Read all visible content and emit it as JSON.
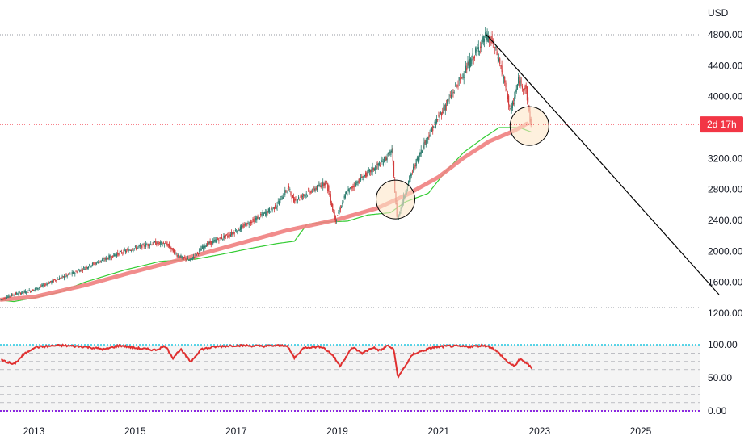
{
  "colors": {
    "background": "#ffffff",
    "candle_up": "#2e7d6f",
    "candle_down": "#d23a3a",
    "ma_thick": "#f08080",
    "ma_thin": "#33cc33",
    "trendline": "#000000",
    "circle_fill": "#fde6c8",
    "circle_stroke": "#000000",
    "badge": "#f23645",
    "rsi_line": "#e03030",
    "rsi_band": "#e6e6e6",
    "rsi_top_line": "#22c7e0",
    "rsi_zero_line": "#8b28e0",
    "grid_line": "#c8c8c8"
  },
  "chart_data": [
    {
      "type": "candlestick",
      "currency_label": "USD",
      "price_axis_ticks": [
        "4800.00",
        "4400.00",
        "4000.00",
        "3200.00",
        "2800.00",
        "2400.00",
        "2000.00",
        "1600.00",
        "1200.00"
      ],
      "price_axis_values": [
        4800,
        4400,
        4000,
        3200,
        2800,
        2400,
        2000,
        1600,
        1200
      ],
      "countdown_badge": "2d 17h",
      "current_price": 3640,
      "x_ticks": [
        "2013",
        "2015",
        "2017",
        "2019",
        "2021",
        "2023",
        "2025"
      ],
      "x_tick_years": [
        2013,
        2015,
        2017,
        2019,
        2021,
        2023,
        2025
      ],
      "x_range_years": [
        2012.35,
        2026.6
      ],
      "price_anchors": [
        [
          2012.35,
          1370
        ],
        [
          2012.6,
          1440
        ],
        [
          2013.0,
          1500
        ],
        [
          2013.4,
          1620
        ],
        [
          2013.8,
          1720
        ],
        [
          2014.2,
          1840
        ],
        [
          2014.6,
          1950
        ],
        [
          2015.0,
          2040
        ],
        [
          2015.4,
          2110
        ],
        [
          2015.65,
          2090
        ],
        [
          2015.85,
          1950
        ],
        [
          2016.1,
          1880
        ],
        [
          2016.4,
          2080
        ],
        [
          2016.9,
          2220
        ],
        [
          2017.3,
          2380
        ],
        [
          2017.8,
          2580
        ],
        [
          2018.05,
          2830
        ],
        [
          2018.15,
          2650
        ],
        [
          2018.6,
          2820
        ],
        [
          2018.8,
          2900
        ],
        [
          2018.98,
          2400
        ],
        [
          2019.2,
          2760
        ],
        [
          2019.5,
          2950
        ],
        [
          2019.9,
          3150
        ],
        [
          2020.1,
          3300
        ],
        [
          2020.2,
          2400
        ],
        [
          2020.45,
          2950
        ],
        [
          2020.7,
          3350
        ],
        [
          2020.95,
          3650
        ],
        [
          2021.3,
          4050
        ],
        [
          2021.6,
          4400
        ],
        [
          2021.95,
          4780
        ],
        [
          2022.1,
          4700
        ],
        [
          2022.25,
          4400
        ],
        [
          2022.45,
          3800
        ],
        [
          2022.6,
          4200
        ],
        [
          2022.75,
          4100
        ],
        [
          2022.85,
          3620
        ]
      ],
      "ma_thick_anchors": [
        [
          2012.35,
          1375
        ],
        [
          2013.0,
          1410
        ],
        [
          2014.0,
          1560
        ],
        [
          2015.0,
          1740
        ],
        [
          2016.0,
          1910
        ],
        [
          2017.0,
          2090
        ],
        [
          2018.0,
          2270
        ],
        [
          2019.0,
          2410
        ],
        [
          2019.8,
          2560
        ],
        [
          2020.4,
          2740
        ],
        [
          2021.0,
          2960
        ],
        [
          2021.5,
          3210
        ],
        [
          2022.0,
          3420
        ],
        [
          2022.5,
          3560
        ],
        [
          2022.75,
          3650
        ]
      ],
      "ma_thin_anchors": [
        [
          2012.35,
          1370
        ],
        [
          2012.6,
          1350
        ],
        [
          2013.0,
          1400
        ],
        [
          2013.5,
          1470
        ],
        [
          2014.0,
          1600
        ],
        [
          2014.8,
          1760
        ],
        [
          2015.5,
          1870
        ],
        [
          2016.2,
          1900
        ],
        [
          2016.7,
          1960
        ],
        [
          2017.3,
          2040
        ],
        [
          2017.8,
          2100
        ],
        [
          2018.15,
          2130
        ],
        [
          2018.4,
          2350
        ],
        [
          2018.8,
          2380
        ],
        [
          2019.2,
          2390
        ],
        [
          2019.6,
          2470
        ],
        [
          2020.05,
          2500
        ],
        [
          2020.35,
          2640
        ],
        [
          2020.8,
          2750
        ],
        [
          2021.1,
          3000
        ],
        [
          2021.5,
          3280
        ],
        [
          2021.9,
          3470
        ],
        [
          2022.2,
          3600
        ],
        [
          2022.6,
          3600
        ],
        [
          2022.85,
          3540
        ]
      ],
      "trendline": [
        [
          2021.95,
          4800
        ],
        [
          2026.55,
          1440
        ]
      ],
      "highlight_circles": [
        {
          "year": 2020.15,
          "price": 2670
        },
        {
          "year": 2022.8,
          "price": 3620
        }
      ]
    },
    {
      "type": "line",
      "indicator": "oscillator",
      "y_ticks": [
        "100.00",
        "50.00",
        "0.00"
      ],
      "y_tick_values": [
        100,
        50,
        0
      ],
      "band_range": [
        0,
        100
      ],
      "anchors": [
        [
          2012.35,
          77
        ],
        [
          2012.6,
          70
        ],
        [
          2012.8,
          85
        ],
        [
          2013.0,
          96
        ],
        [
          2013.5,
          99
        ],
        [
          2014.0,
          97
        ],
        [
          2014.4,
          93
        ],
        [
          2014.7,
          99
        ],
        [
          2015.0,
          95
        ],
        [
          2015.4,
          92
        ],
        [
          2015.6,
          98
        ],
        [
          2015.75,
          80
        ],
        [
          2015.9,
          93
        ],
        [
          2016.1,
          74
        ],
        [
          2016.3,
          93
        ],
        [
          2016.6,
          97
        ],
        [
          2017.0,
          99
        ],
        [
          2017.5,
          98
        ],
        [
          2018.0,
          99
        ],
        [
          2018.15,
          80
        ],
        [
          2018.35,
          96
        ],
        [
          2018.7,
          97
        ],
        [
          2018.9,
          85
        ],
        [
          2019.05,
          68
        ],
        [
          2019.3,
          96
        ],
        [
          2019.5,
          87
        ],
        [
          2019.7,
          96
        ],
        [
          2019.85,
          91
        ],
        [
          2020.0,
          99
        ],
        [
          2020.12,
          92
        ],
        [
          2020.2,
          50
        ],
        [
          2020.3,
          63
        ],
        [
          2020.5,
          86
        ],
        [
          2020.7,
          91
        ],
        [
          2020.9,
          96
        ],
        [
          2021.2,
          98
        ],
        [
          2021.6,
          97
        ],
        [
          2021.9,
          99
        ],
        [
          2022.05,
          96
        ],
        [
          2022.2,
          87
        ],
        [
          2022.35,
          75
        ],
        [
          2022.5,
          67
        ],
        [
          2022.6,
          78
        ],
        [
          2022.75,
          72
        ],
        [
          2022.85,
          64
        ]
      ]
    }
  ]
}
